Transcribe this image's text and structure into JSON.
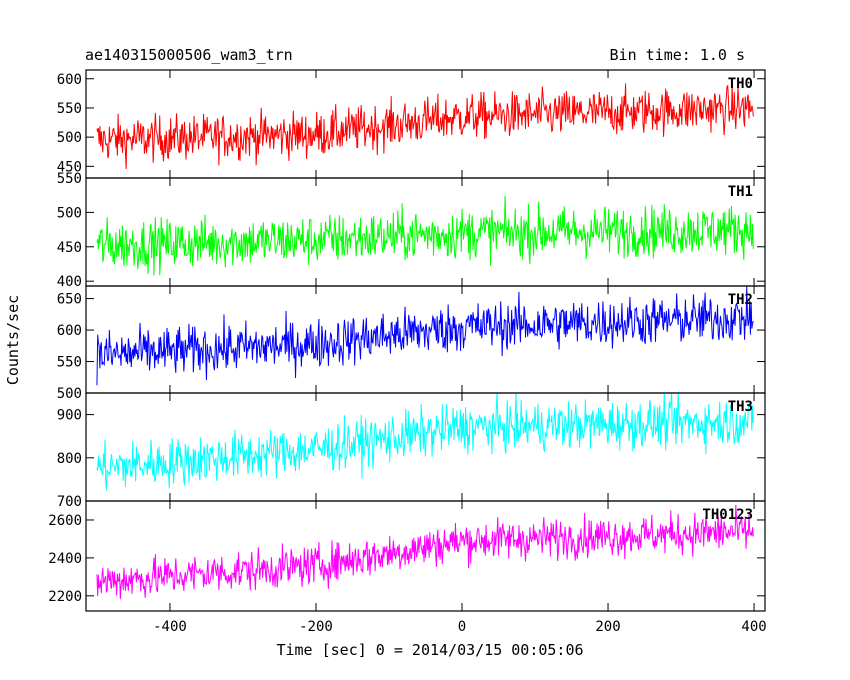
{
  "header": {
    "title": "ae140315000506_wam3_trn",
    "bin_time": "Bin time: 1.0 s"
  },
  "chart_data": {
    "type": "line",
    "xlabel": "Time [sec] 0 = 2014/03/15 00:05:06",
    "ylabel": "Counts/sec",
    "xlim": [
      -515,
      415
    ],
    "xticks": [
      -400,
      -200,
      0,
      200,
      400
    ],
    "x_range": [
      -500,
      399
    ],
    "bin_time_s": 1.0,
    "panels": [
      {
        "name": "TH0",
        "color": "#ff0000",
        "ylim": [
          430,
          615
        ],
        "yticks": [
          450,
          500,
          550,
          600
        ],
        "trend": [
          [
            -500,
            495
          ],
          [
            -200,
            505
          ],
          [
            0,
            535
          ],
          [
            400,
            550
          ]
        ],
        "noise_amplitude": 35
      },
      {
        "name": "TH1",
        "color": "#00ff00",
        "ylim": [
          393,
          550
        ],
        "yticks": [
          400,
          450,
          500,
          550
        ],
        "trend": [
          [
            -500,
            452
          ],
          [
            -200,
            460
          ],
          [
            0,
            470
          ],
          [
            400,
            475
          ]
        ],
        "noise_amplitude": 33
      },
      {
        "name": "TH2",
        "color": "#0000ff",
        "ylim": [
          500,
          670
        ],
        "yticks": [
          500,
          550,
          600,
          650
        ],
        "trend": [
          [
            -500,
            560
          ],
          [
            -200,
            578
          ],
          [
            0,
            605
          ],
          [
            400,
            620
          ]
        ],
        "noise_amplitude": 35
      },
      {
        "name": "TH3",
        "color": "#00ffff",
        "ylim": [
          700,
          950
        ],
        "yticks": [
          700,
          800,
          900
        ],
        "trend": [
          [
            -500,
            775
          ],
          [
            -200,
            820
          ],
          [
            0,
            870
          ],
          [
            400,
            885
          ]
        ],
        "noise_amplitude": 50
      },
      {
        "name": "TH0123",
        "color": "#ff00ff",
        "ylim": [
          2120,
          2700
        ],
        "yticks": [
          2200,
          2400,
          2600
        ],
        "trend": [
          [
            -500,
            2275
          ],
          [
            -200,
            2360
          ],
          [
            0,
            2490
          ],
          [
            400,
            2540
          ]
        ],
        "noise_amplitude": 95
      }
    ]
  }
}
